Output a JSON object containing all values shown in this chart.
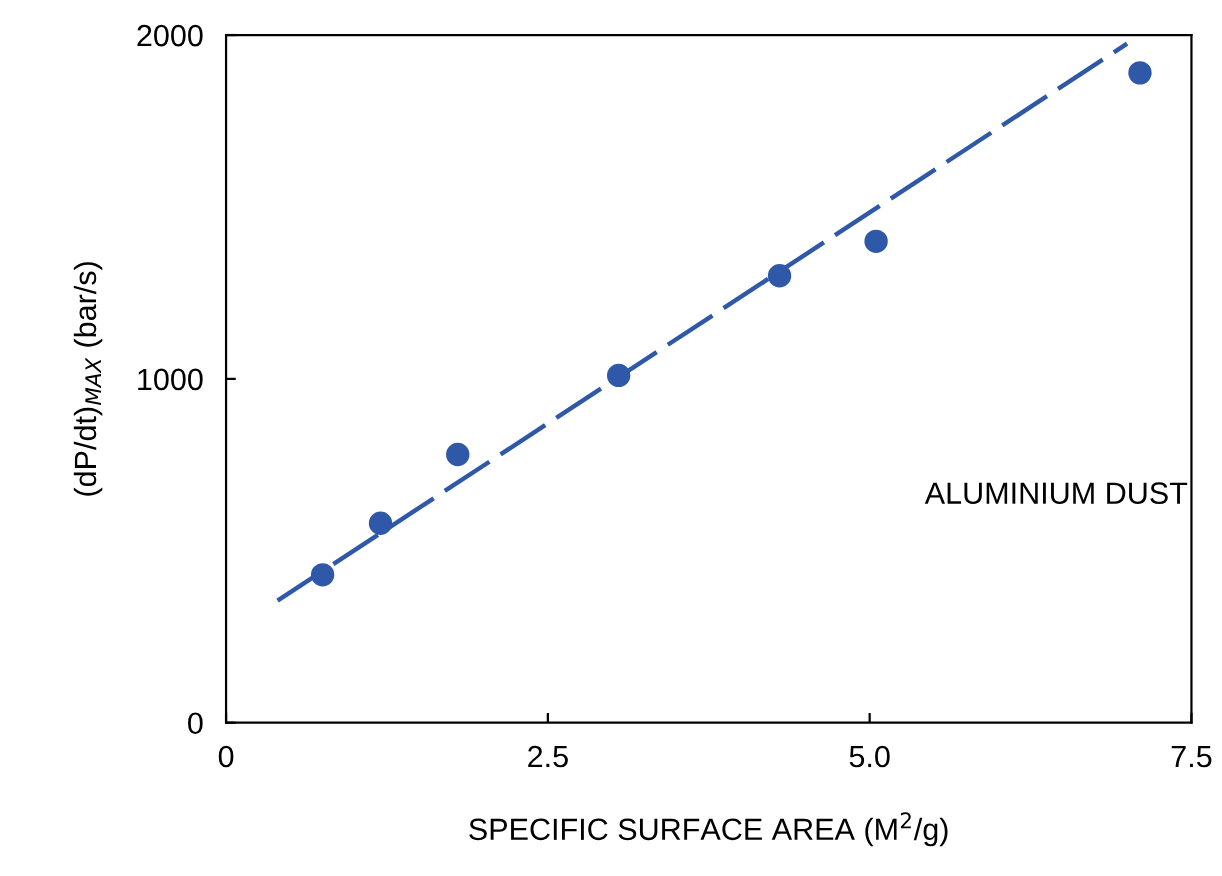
{
  "chart_data": {
    "type": "scatter",
    "xlabel": "SPECIFIC SURFACE AREA (M$^{2}$/g)",
    "ylabel": "(dP/dt)$_{MAX}$ (bar/s)",
    "annotations": [
      "ALUMINIUM DUST"
    ],
    "xlim": [
      0,
      7.5
    ],
    "ylim": [
      0,
      2000
    ],
    "xticks": [
      0,
      {
        "value": 2.5,
        "label": "2.5"
      },
      {
        "value": 5,
        "label": "5.0"
      },
      {
        "value": 7.5,
        "label": "7.5"
      }
    ],
    "yticks": [
      0,
      1000,
      2000
    ],
    "grid": false,
    "legend": false,
    "series": [
      {
        "color": "#2f59a8",
        "marker": "circle",
        "x": [
          0.75,
          1.2,
          1.8,
          3.05,
          4.3,
          5.05,
          7.1
        ],
        "values": [
          430,
          580,
          780,
          1010,
          1300,
          1400,
          1890
        ]
      },
      {
        "type": "line",
        "color": "#2f59a8",
        "line_style": "dashed",
        "x": [
          0.4,
          7.0
        ],
        "values": [
          355,
          1975
        ]
      }
    ]
  }
}
